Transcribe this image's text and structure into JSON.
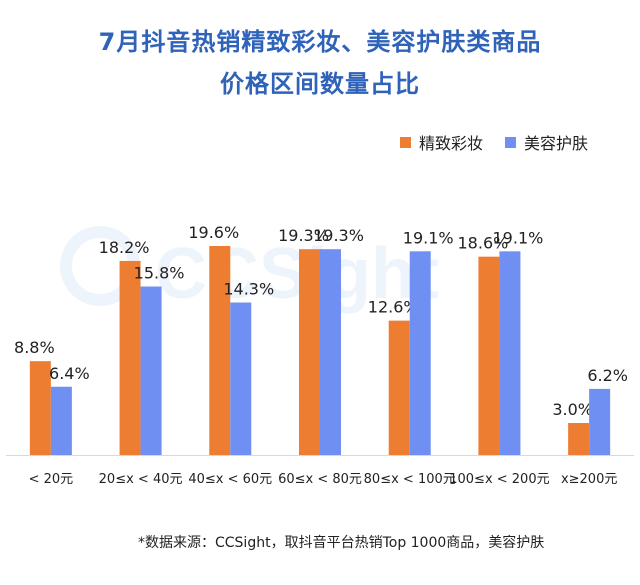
{
  "title_line1": "7月抖音热销精致彩妆、美容护肤类商品",
  "title_line2": "价格区间数量占比",
  "legend": [
    {
      "name": "精致彩妆",
      "color": "#ed7d31"
    },
    {
      "name": "美容护肤",
      "color": "#6f8ff2"
    }
  ],
  "watermark_text": "CCSight",
  "footnote": "*数据来源：CCSight，取抖音平台热销Top 1000商品，美容护肤",
  "chart_data": {
    "type": "bar",
    "categories": [
      "< 20元",
      "20≤x < 40元",
      "40≤x < 60元",
      "60≤x < 80元",
      "80≤x < 100元",
      "100≤x < 200元",
      "x≥200元"
    ],
    "series": [
      {
        "name": "精致彩妆",
        "values": [
          8.8,
          18.2,
          19.6,
          19.3,
          12.6,
          18.6,
          3.0
        ],
        "labels": [
          "8.8%",
          "18.2%",
          "19.6%",
          "19.3%",
          "12.6%",
          "18.6%",
          "3.0%"
        ]
      },
      {
        "name": "美容护肤",
        "values": [
          6.4,
          15.8,
          14.3,
          19.3,
          19.1,
          19.1,
          6.2
        ],
        "labels": [
          "6.4%",
          "15.8%",
          "14.3%",
          "19.3%",
          "19.1%",
          "19.1%",
          "6.2%"
        ]
      }
    ],
    "ylim": [
      0,
      20
    ],
    "grid": false,
    "legend_position": "top-right"
  }
}
